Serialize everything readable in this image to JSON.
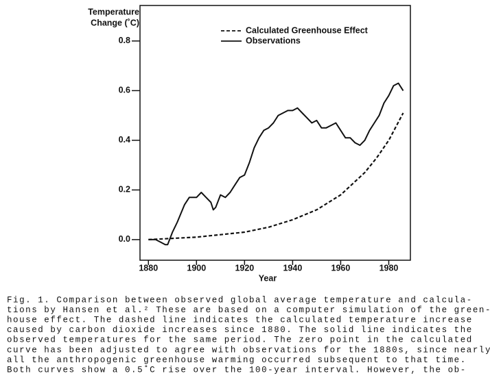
{
  "chart_data": {
    "type": "line",
    "ylabel": [
      "Temperature",
      "Change (˚C)"
    ],
    "xlabel": "Year",
    "xlim": [
      1876.5,
      1989
    ],
    "ylim": [
      -0.083,
      0.943
    ],
    "xticks": [
      1880,
      1900,
      1920,
      1940,
      1960,
      1980
    ],
    "yticks": [
      {
        "value": 0,
        "label": "0.0"
      },
      {
        "value": 0.2,
        "label": "0.2"
      },
      {
        "value": 0.4,
        "label": "0.4"
      },
      {
        "value": 0.6,
        "label": "0.6"
      },
      {
        "value": 0.8,
        "label": "0.8"
      }
    ],
    "series": [
      {
        "name": "Calculated Greenhouse Effect",
        "color": "#111111",
        "dashed": true,
        "x": [
          1880,
          1890,
          1900,
          1910,
          1920,
          1930,
          1940,
          1950,
          1960,
          1970,
          1975,
          1980,
          1986
        ],
        "values": [
          0,
          0.005,
          0.01,
          0.02,
          0.03,
          0.05,
          0.08,
          0.12,
          0.18,
          0.27,
          0.33,
          0.4,
          0.51
        ]
      },
      {
        "name": "Observations",
        "color": "#111111",
        "dashed": false,
        "x": [
          1880,
          1883,
          1885,
          1887,
          1888,
          1890,
          1892,
          1895,
          1897,
          1900,
          1902,
          1904,
          1906,
          1907,
          1908,
          1910,
          1912,
          1914,
          1916,
          1918,
          1920,
          1922,
          1924,
          1926,
          1928,
          1930,
          1932,
          1934,
          1936,
          1938,
          1940,
          1942,
          1944,
          1946,
          1948,
          1950,
          1952,
          1954,
          1956,
          1958,
          1960,
          1962,
          1964,
          1966,
          1968,
          1970,
          1972,
          1974,
          1976,
          1978,
          1980,
          1982,
          1984,
          1986
        ],
        "values": [
          0,
          0,
          -0.01,
          -0.02,
          -0.02,
          0.03,
          0.07,
          0.14,
          0.17,
          0.17,
          0.19,
          0.17,
          0.15,
          0.12,
          0.13,
          0.18,
          0.17,
          0.19,
          0.22,
          0.25,
          0.26,
          0.31,
          0.37,
          0.41,
          0.44,
          0.45,
          0.47,
          0.5,
          0.51,
          0.52,
          0.52,
          0.53,
          0.51,
          0.49,
          0.47,
          0.48,
          0.45,
          0.45,
          0.46,
          0.47,
          0.44,
          0.41,
          0.41,
          0.39,
          0.38,
          0.4,
          0.44,
          0.47,
          0.5,
          0.55,
          0.58,
          0.62,
          0.63,
          0.6
        ]
      }
    ]
  },
  "caption": [
    "Fig. 1. Comparison between observed global average temperature and calcula-",
    "tions by Hansen et al.² These are based on a computer simulation of the green-",
    "house effect. The dashed line indicates the calculated temperature increase",
    "caused by carbon dioxide increases since 1880. The solid line indicates the",
    "observed temperatures for the same period. The zero point in the calculated",
    "curve has been adjusted to agree with observations for the 1880s, since nearly",
    "all the anthropogenic greenhouse warming occurred subsequent to that time.",
    "Both curves show a 0.5˚C rise over the 100-year interval. However, the ob-"
  ]
}
